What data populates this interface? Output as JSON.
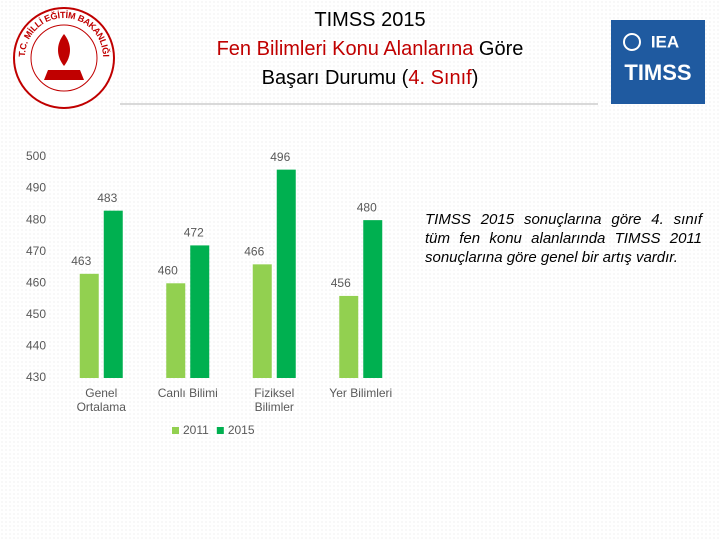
{
  "title_lines": [
    [
      {
        "text": "TIMSS 2015",
        "color": "#000000"
      }
    ],
    [
      {
        "text": "Fen Bilimleri Konu Alanlarına",
        "color": "#c00000"
      },
      {
        "text": " Göre",
        "color": "#000000"
      }
    ],
    [
      {
        "text": "Başarı Durumu (",
        "color": "#000000"
      },
      {
        "text": "4. Sınıf",
        "color": "#c00000"
      },
      {
        "text": ")",
        "color": "#000000"
      }
    ]
  ],
  "left_logo": "T.C. MİLLİ EĞİTİM BAKANLIĞI",
  "right_logo": {
    "top": "IEA",
    "bottom": "TIMSS"
  },
  "note": "TIMSS 2015 sonuçlarına göre 4. sınıf tüm fen konu alanlarında TIMSS 2011 sonuçlarına göre genel bir artış vardır.",
  "chart_data": {
    "type": "bar",
    "categories": [
      "Genel Ortalama",
      "Canlı Bilimi",
      "Fiziksel Bilimler",
      "Yer Bilimleri"
    ],
    "series": [
      {
        "name": "2011",
        "color": "#92d050",
        "values": [
          463,
          460,
          466,
          456
        ]
      },
      {
        "name": "2015",
        "color": "#00b050",
        "values": [
          483,
          472,
          496,
          480
        ]
      }
    ],
    "ylim": [
      430,
      500
    ],
    "yticks": [
      430,
      440,
      450,
      460,
      470,
      480,
      490,
      500
    ],
    "grid": false,
    "legend": "bottom"
  }
}
